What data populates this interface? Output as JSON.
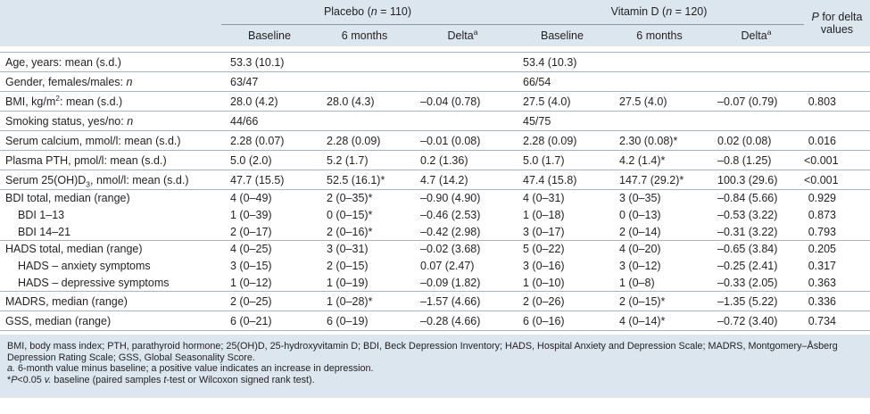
{
  "header": {
    "groups": [
      [
        "Placebo (",
        {
          "italic": "n"
        },
        " = 110)"
      ],
      [
        "Vitamin D (",
        {
          "italic": "n"
        },
        " = 120)"
      ]
    ],
    "p_header": [
      {
        "italic": "P"
      },
      " for delta values"
    ],
    "subheaders": [
      [
        "Baseline"
      ],
      [
        "6 months"
      ],
      [
        "Delta",
        {
          "sup": "a"
        }
      ],
      [
        "Baseline"
      ],
      [
        "6 months"
      ],
      [
        "Delta",
        {
          "sup": "a"
        }
      ]
    ]
  },
  "groups": [
    [
      {
        "label": [
          "Age, years: mean (s.d.)"
        ],
        "cells": [
          "53.3 (10.1)",
          null,
          null,
          "53.4 (10.3)",
          null,
          null,
          null
        ]
      }
    ],
    [
      {
        "label": [
          "Gender, females/males: ",
          {
            "italic": "n"
          }
        ],
        "cells": [
          "63/47",
          null,
          null,
          "66/54",
          null,
          null,
          null
        ]
      }
    ],
    [
      {
        "label": [
          "BMI, kg/m",
          {
            "sup": "2"
          },
          ": mean (s.d.)"
        ],
        "cells": [
          "28.0 (4.2)",
          "28.0 (4.3)",
          "–0.04 (0.78)",
          "27.5 (4.0)",
          "27.5 (4.0)",
          "–0.07 (0.79)",
          "0.803"
        ]
      }
    ],
    [
      {
        "label": [
          "Smoking status, yes/no: ",
          {
            "italic": "n"
          }
        ],
        "cells": [
          "44/66",
          null,
          null,
          "45/75",
          null,
          null,
          null
        ]
      }
    ],
    [
      {
        "label": [
          "Serum calcium, mmol/l: mean (s.d.)"
        ],
        "cells": [
          "2.28 (0.07)",
          "2.28 (0.09)",
          "–0.01 (0.08)",
          "2.28 (0.09)",
          "2.30 (0.08)*",
          "0.02 (0.08)",
          "0.016"
        ]
      }
    ],
    [
      {
        "label": [
          "Plasma PTH, pmol/l: mean (s.d.)"
        ],
        "cells": [
          "5.0 (2.0)",
          "5.2 (1.7)",
          "0.2 (1.36)",
          "5.0 (1.7)",
          "4.2 (1.4)*",
          "–0.8 (1.25)",
          "<0.001"
        ]
      }
    ],
    [
      {
        "label": [
          "Serum 25(OH)D",
          {
            "sub": "3"
          },
          ", nmol/l: mean (s.d.)"
        ],
        "cells": [
          "47.7 (15.5)",
          "52.5 (16.1)*",
          "4.7 (14.2)",
          "47.4 (15.8)",
          "147.7 (29.2)*",
          "100.3 (29.6)",
          "<0.001"
        ]
      }
    ],
    [
      {
        "label": [
          "BDI total, median (range)"
        ],
        "cells": [
          "4 (0–49)",
          "2 (0–35)*",
          "–0.90 (4.90)",
          "4 (0–31)",
          "3 (0–35)",
          "–0.84 (5.66)",
          "0.929"
        ]
      },
      {
        "label": [
          "BDI 1–13"
        ],
        "cells": [
          "1 (0–39)",
          "0 (0–15)*",
          "–0.46 (2.53)",
          "1 (0–18)",
          "0 (0–13)",
          "–0.53 (3.22)",
          "0.873"
        ]
      },
      {
        "label": [
          "BDI 14–21"
        ],
        "cells": [
          "2 (0–17)",
          "2 (0–16)*",
          "–0.42 (2.98)",
          "3 (0–17)",
          "2 (0–14)",
          "–0.31 (3.22)",
          "0.793"
        ]
      }
    ],
    [
      {
        "label": [
          "HADS total, median (range)"
        ],
        "cells": [
          "4 (0–25)",
          "3 (0–31)",
          "–0.02 (3.68)",
          "5 (0–22)",
          "4 (0–20)",
          "–0.65 (3.84)",
          "0.205"
        ]
      },
      {
        "label": [
          "HADS – anxiety symptoms"
        ],
        "cells": [
          "3 (0–15)",
          "2 (0–15)",
          "0.07 (2.47)",
          "3 (0–16)",
          "3 (0–12)",
          "–0.25 (2.41)",
          "0.317"
        ]
      },
      {
        "label": [
          "HADS – depressive symptoms"
        ],
        "cells": [
          "1 (0–12)",
          "1 (0–19)",
          "–0.09 (1.82)",
          "1 (0–10)",
          "1 (0–8)",
          "–0.33 (2.05)",
          "0.363"
        ]
      }
    ],
    [
      {
        "label": [
          "MADRS, median (range)"
        ],
        "cells": [
          "2 (0–25)",
          "1 (0–28)*",
          "–1.57 (4.66)",
          "2 (0–26)",
          "2 (0–15)*",
          "–1.35 (5.22)",
          "0.336"
        ]
      }
    ],
    [
      {
        "label": [
          "GSS, median (range)"
        ],
        "cells": [
          "6 (0–21)",
          "6 (0–19)",
          "–0.28 (4.66)",
          "6 (0–16)",
          "4 (0–14)*",
          "–0.72 (3.40)",
          "0.734"
        ]
      }
    ]
  ],
  "notes": [
    [
      "BMI, body mass index; PTH, parathyroid hormone; 25(OH)D, 25-hydroxyvitamin D; BDI, Beck Depression Inventory; HADS, Hospital Anxiety and Depression Scale; MADRS, Montgomery–Åsberg Depression Rating Scale; GSS, Global Seasonality Score."
    ],
    [
      {
        "italic": "a."
      },
      "  6-month value minus baseline; a positive value indicates an increase in depression."
    ],
    [
      "*",
      {
        "italic": "P"
      },
      "<0.05 ",
      {
        "italic": "v."
      },
      " baseline (paired samples ",
      {
        "italic": "t"
      },
      "-test or Wilcoxon signed rank test)."
    ]
  ]
}
